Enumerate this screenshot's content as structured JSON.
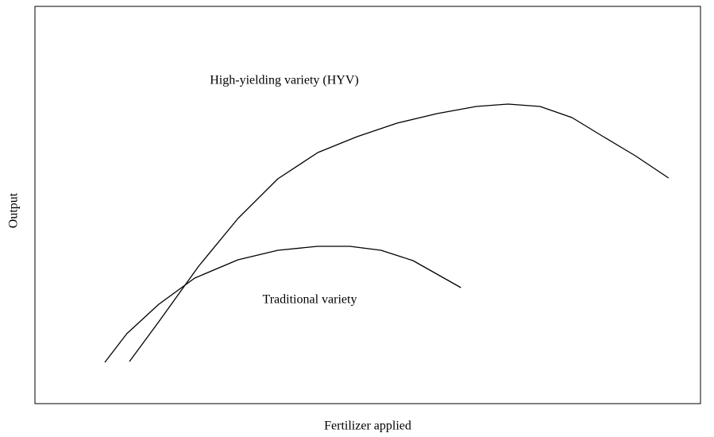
{
  "chart_data": {
    "type": "line",
    "xlabel": "Fertilizer applied",
    "ylabel": "Output",
    "annotations": [
      "High-yielding variety (HYV)",
      "Traditional variety"
    ],
    "xlim": [
      0,
      100
    ],
    "ylim": [
      0,
      100
    ],
    "series": [
      {
        "name": "High-yielding variety (HYV)",
        "color": "#000000",
        "x": [
          14.2,
          18.6,
          24.6,
          30.5,
          36.5,
          42.5,
          48.4,
          54.4,
          60.4,
          66.3,
          71.1,
          75.9,
          80.7,
          85.4,
          90.2,
          95.2
        ],
        "values": [
          10.6,
          20.6,
          34.6,
          46.6,
          56.6,
          63.2,
          67.2,
          70.6,
          73.0,
          74.8,
          75.4,
          74.8,
          72.0,
          67.2,
          62.4,
          56.8
        ]
      },
      {
        "name": "Traditional variety",
        "color": "#000000",
        "x": [
          10.5,
          13.8,
          18.6,
          24.0,
          30.5,
          36.5,
          42.5,
          47.3,
          52.0,
          56.8,
          60.4,
          64.0
        ],
        "values": [
          10.4,
          17.6,
          25.0,
          31.6,
          36.2,
          38.6,
          39.6,
          39.6,
          38.6,
          36.0,
          32.6,
          29.2
        ]
      }
    ]
  }
}
